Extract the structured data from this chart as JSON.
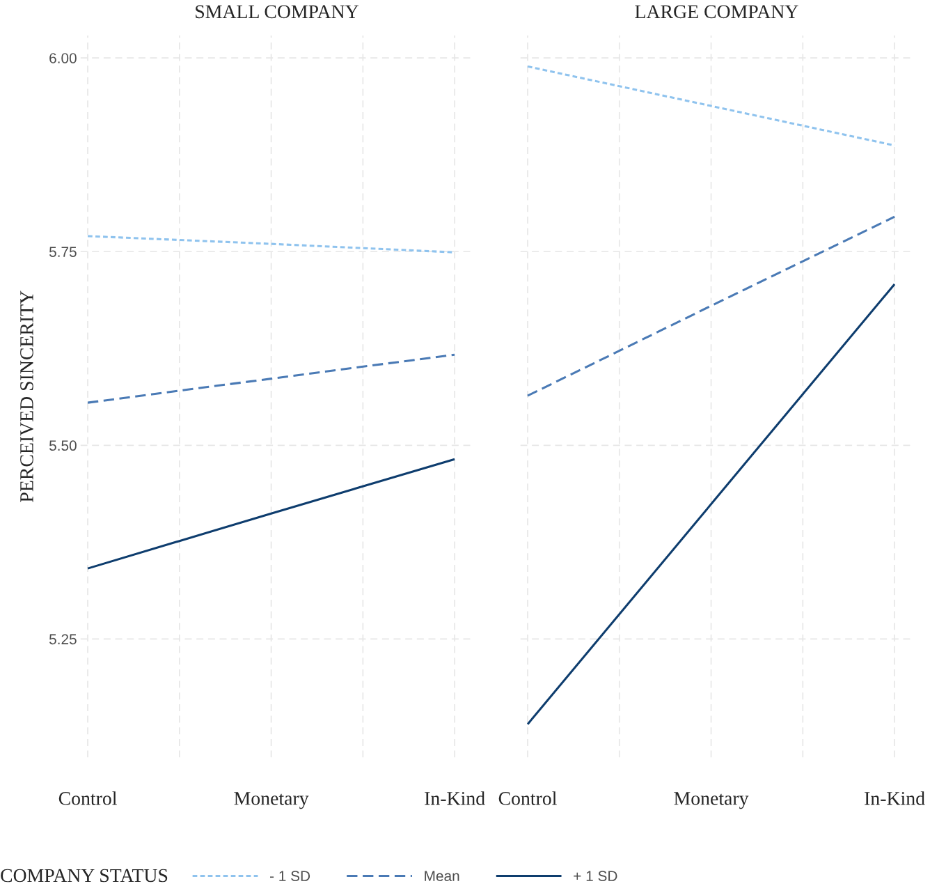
{
  "chart_data": [
    {
      "type": "line",
      "title": "SMALL COMPANY",
      "ylabel": "PERCEIVED SINCERITY",
      "categories": [
        "Control",
        "Monetary",
        "In-Kind"
      ],
      "series": [
        {
          "name": "- 1 SD",
          "color": "#8fc3ee",
          "line_style": "dotted",
          "values": [
            5.77,
            5.76,
            5.749
          ]
        },
        {
          "name": "Mean",
          "color": "#4a7ab5",
          "line_style": "dashed",
          "values": [
            5.555,
            5.586,
            5.617
          ]
        },
        {
          "name": "+ 1 SD",
          "color": "#0e3d6e",
          "line_style": "solid",
          "values": [
            5.341,
            5.412,
            5.482
          ]
        }
      ],
      "ylim": [
        5.097,
        6.029
      ],
      "yticks": [
        {
          "value": 5.25,
          "label": "5.25"
        },
        {
          "value": 5.5,
          "label": "5.50"
        },
        {
          "value": 5.75,
          "label": "5.75"
        },
        {
          "value": 6.0,
          "label": "6.00"
        }
      ],
      "grid": true,
      "legend": "bottom",
      "legend_title": "COMPANY STATUS"
    },
    {
      "type": "line",
      "title": "LARGE COMPANY",
      "categories": [
        "Control",
        "Monetary",
        "In-Kind"
      ],
      "series": [
        {
          "color": "#8fc3ee",
          "line_style": "dotted",
          "values": [
            5.989,
            5.938,
            5.887
          ]
        },
        {
          "color": "#4a7ab5",
          "line_style": "dashed",
          "values": [
            5.564,
            5.68,
            5.795
          ]
        },
        {
          "color": "#0e3d6e",
          "line_style": "solid",
          "values": [
            5.14,
            5.424,
            5.708
          ]
        }
      ],
      "ylim": [
        5.097,
        6.029
      ],
      "yticks": [
        5.25,
        5.5,
        5.75,
        6.0
      ],
      "grid": true,
      "tick_labels": "x"
    }
  ]
}
